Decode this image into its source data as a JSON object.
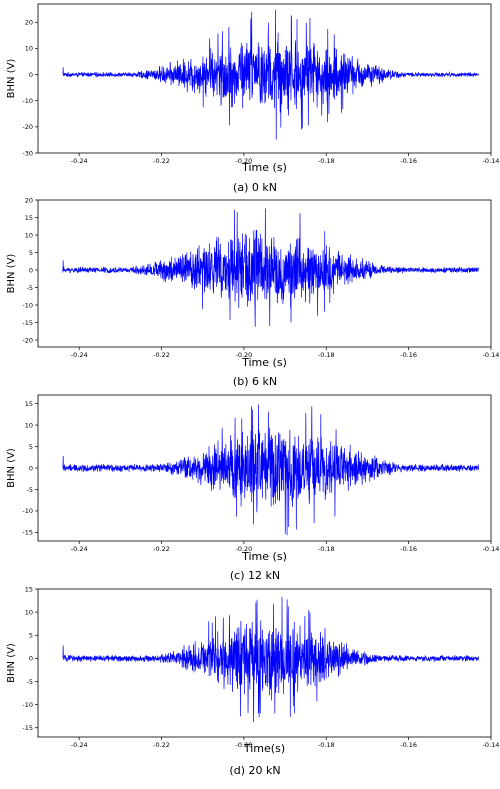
{
  "chart_data": [
    {
      "type": "line",
      "caption": "(a) 0 kN",
      "xlabel": "Time (s)",
      "ylabel": "BHN (V)",
      "xlim": [
        -0.25,
        -0.14
      ],
      "ylim": [
        -30,
        27
      ],
      "xticks": [
        -0.24,
        -0.22,
        -0.2,
        -0.18,
        -0.16,
        -0.14
      ],
      "xtick_labels": [
        "-0.24",
        "-0.22",
        "-0.20",
        "-0.18",
        "-0.16",
        "-0.14"
      ],
      "yticks": [
        -30,
        -20,
        -10,
        0,
        10,
        20
      ],
      "yticks_labels": [
        "-30",
        "-20",
        "-10",
        "0",
        "10",
        "20"
      ],
      "series": [
        {
          "color": "#0000ff",
          "x_start": -0.244,
          "x_end": -0.143,
          "burst_start": -0.228,
          "burst_end": -0.16,
          "burst_center": -0.192,
          "peak_max": 26,
          "peak_min": -28,
          "baseline_noise": 1.0
        }
      ]
    },
    {
      "type": "line",
      "caption": "(b) 6 kN",
      "xlabel": "Time  (s)",
      "ylabel": "BHN (V)",
      "xlim": [
        -0.25,
        -0.14
      ],
      "ylim": [
        -22,
        20
      ],
      "xticks": [
        -0.24,
        -0.22,
        -0.2,
        -0.18,
        -0.16,
        -0.14
      ],
      "xtick_labels": [
        "-0.24",
        "-0.22",
        "-0.20",
        "-0.18",
        "-0.16",
        "-0.14"
      ],
      "yticks": [
        -20,
        -15,
        -10,
        -5,
        0,
        5,
        10,
        15,
        20
      ],
      "yticks_labels": [
        "-20",
        "-15",
        "-10",
        "-5",
        "0",
        "5",
        "10",
        "15",
        "20"
      ],
      "series": [
        {
          "color": "#0000ff",
          "x_start": -0.244,
          "x_end": -0.143,
          "burst_start": -0.228,
          "burst_end": -0.163,
          "burst_center": -0.196,
          "peak_max": 19,
          "peak_min": -21,
          "baseline_noise": 1.0
        }
      ]
    },
    {
      "type": "line",
      "caption": "(c) 12 kN",
      "xlabel": "Time  (s)",
      "ylabel": "BHN (V)",
      "xlim": [
        -0.25,
        -0.14
      ],
      "ylim": [
        -17,
        17
      ],
      "xticks": [
        -0.24,
        -0.22,
        -0.2,
        -0.18,
        -0.16,
        -0.14
      ],
      "xtick_labels": [
        "-0.24",
        "-0.22",
        "-0.20",
        "-0.18",
        "-0.16",
        "-0.14"
      ],
      "yticks": [
        -15,
        -10,
        -5,
        0,
        5,
        10,
        15
      ],
      "yticks_labels": [
        "-15",
        "-10",
        "-5",
        "0",
        "5",
        "10",
        "15"
      ],
      "series": [
        {
          "color": "#0000ff",
          "x_start": -0.244,
          "x_end": -0.143,
          "burst_start": -0.222,
          "burst_end": -0.16,
          "burst_center": -0.192,
          "peak_max": 16,
          "peak_min": -16,
          "baseline_noise": 1.0
        }
      ]
    },
    {
      "type": "line",
      "caption": "(d) 20 kN",
      "xlabel": "Time(s)",
      "ylabel": "BHN (V)",
      "xlim": [
        -0.25,
        -0.14
      ],
      "ylim": [
        -17,
        15
      ],
      "xticks": [
        -0.24,
        -0.22,
        -0.2,
        -0.18,
        -0.16,
        -0.14
      ],
      "xtick_labels": [
        "-0.24",
        "-0.22",
        "-0.20",
        "-0.18",
        "-0.16",
        "-0.14"
      ],
      "yticks": [
        -15,
        -10,
        -5,
        0,
        5,
        10,
        15
      ],
      "yticks_labels": [
        "-15",
        "-10",
        "-5",
        "0",
        "5",
        "10",
        "15"
      ],
      "series": [
        {
          "color": "#0000ff",
          "x_start": -0.244,
          "x_end": -0.143,
          "burst_start": -0.222,
          "burst_end": -0.166,
          "burst_center": -0.195,
          "peak_max": 14,
          "peak_min": -16,
          "baseline_noise": 0.8
        }
      ]
    }
  ]
}
